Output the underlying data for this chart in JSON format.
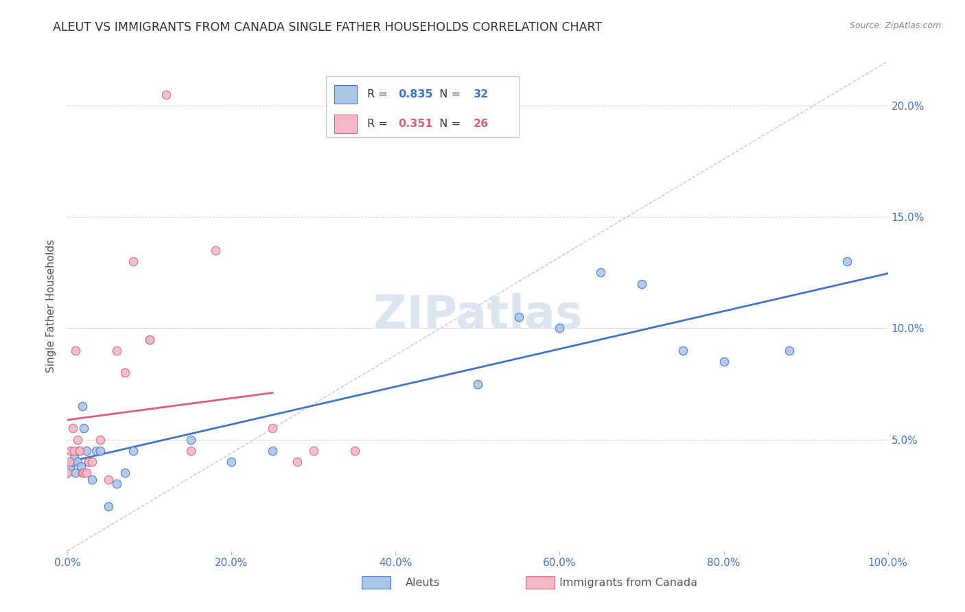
{
  "title": "ALEUT VS IMMIGRANTS FROM CANADA SINGLE FATHER HOUSEHOLDS CORRELATION CHART",
  "source": "Source: ZipAtlas.com",
  "ylabel": "Single Father Households",
  "watermark": "ZIPatlas",
  "blue_label": "Aleuts",
  "pink_label": "Immigrants from Canada",
  "blue_R": 0.835,
  "blue_N": 32,
  "pink_R": 0.351,
  "pink_N": 26,
  "blue_color": "#adc6e8",
  "blue_line_color": "#4472c4",
  "pink_color": "#f5b8c8",
  "pink_line_color": "#d9607a",
  "blue_scatter_x": [
    0.0,
    0.3,
    0.6,
    0.8,
    1.0,
    1.2,
    1.4,
    1.6,
    1.8,
    2.0,
    2.3,
    2.6,
    3.0,
    3.5,
    4.0,
    5.0,
    6.0,
    7.0,
    8.0,
    10.0,
    15.0,
    20.0,
    25.0,
    50.0,
    55.0,
    60.0,
    65.0,
    70.0,
    75.0,
    80.0,
    88.0,
    95.0
  ],
  "blue_scatter_y": [
    3.5,
    3.8,
    4.0,
    4.2,
    3.5,
    4.0,
    4.5,
    3.8,
    6.5,
    5.5,
    4.5,
    4.0,
    3.2,
    4.5,
    4.5,
    2.0,
    3.0,
    3.5,
    4.5,
    9.5,
    5.0,
    4.0,
    4.5,
    7.5,
    10.5,
    10.0,
    12.5,
    12.0,
    9.0,
    8.5,
    9.0,
    13.0
  ],
  "pink_scatter_x": [
    0.0,
    0.2,
    0.4,
    0.6,
    0.8,
    1.0,
    1.2,
    1.5,
    1.8,
    2.0,
    2.3,
    2.6,
    3.0,
    4.0,
    5.0,
    6.0,
    7.0,
    8.0,
    10.0,
    12.0,
    15.0,
    18.0,
    25.0,
    28.0,
    30.0,
    35.0
  ],
  "pink_scatter_y": [
    3.5,
    4.0,
    4.5,
    5.5,
    4.5,
    9.0,
    5.0,
    4.5,
    3.5,
    3.5,
    3.5,
    4.0,
    4.0,
    5.0,
    3.2,
    9.0,
    8.0,
    13.0,
    9.5,
    20.5,
    4.5,
    13.5,
    5.5,
    4.0,
    4.5,
    4.5
  ],
  "xlim": [
    0,
    100
  ],
  "ylim": [
    0,
    22
  ],
  "yticks": [
    0,
    5,
    10,
    15,
    20
  ],
  "ytick_labels": [
    "",
    "5.0%",
    "10.0%",
    "15.0%",
    "20.0%"
  ],
  "xticks": [
    0,
    20,
    40,
    60,
    80,
    100
  ],
  "xtick_labels": [
    "0.0%",
    "20.0%",
    "40.0%",
    "60.0%",
    "80.0%",
    "100.0%"
  ],
  "background_color": "#ffffff",
  "grid_color": "#cccccc",
  "title_color": "#333333",
  "axis_color": "#4472c4",
  "watermark_color": "#dce6f0",
  "figsize": [
    14.06,
    8.92
  ],
  "dpi": 100
}
